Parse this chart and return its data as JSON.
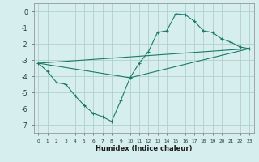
{
  "title": "",
  "xlabel": "Humidex (Indice chaleur)",
  "ylabel": "",
  "bg_color": "#d6eeee",
  "grid_color": "#b0d0d0",
  "line_color": "#1a7a6a",
  "xlim": [
    -0.5,
    23.5
  ],
  "ylim": [
    -7.5,
    0.5
  ],
  "xticks": [
    0,
    1,
    2,
    3,
    4,
    5,
    6,
    7,
    8,
    9,
    10,
    11,
    12,
    13,
    14,
    15,
    16,
    17,
    18,
    19,
    20,
    21,
    22,
    23
  ],
  "yticks": [
    0,
    -1,
    -2,
    -3,
    -4,
    -5,
    -6,
    -7
  ],
  "series": [
    [
      0,
      -3.2
    ],
    [
      1,
      -3.7
    ],
    [
      2,
      -4.4
    ],
    [
      3,
      -4.5
    ],
    [
      4,
      -5.2
    ],
    [
      5,
      -5.8
    ],
    [
      6,
      -6.3
    ],
    [
      7,
      -6.5
    ],
    [
      8,
      -6.8
    ],
    [
      9,
      -5.5
    ],
    [
      10,
      -4.1
    ],
    [
      11,
      -3.2
    ],
    [
      12,
      -2.5
    ],
    [
      13,
      -1.3
    ],
    [
      14,
      -1.2
    ],
    [
      15,
      -0.15
    ],
    [
      16,
      -0.2
    ],
    [
      17,
      -0.6
    ],
    [
      18,
      -1.2
    ],
    [
      19,
      -1.3
    ],
    [
      20,
      -1.7
    ],
    [
      21,
      -1.9
    ],
    [
      22,
      -2.2
    ],
    [
      23,
      -2.3
    ]
  ],
  "line2": [
    [
      0,
      -3.2
    ],
    [
      23,
      -2.3
    ]
  ],
  "line3": [
    [
      0,
      -3.2
    ],
    [
      10,
      -4.1
    ],
    [
      23,
      -2.3
    ]
  ]
}
